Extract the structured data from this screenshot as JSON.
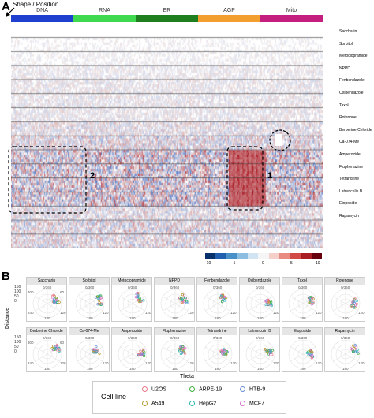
{
  "panel_a": {
    "letter": "A",
    "shape_label": "Shape / Position",
    "groups": [
      {
        "name": "DNA",
        "color": "#1f3fcf"
      },
      {
        "name": "RNA",
        "color": "#3fd94f"
      },
      {
        "name": "ER",
        "color": "#1f7f1f"
      },
      {
        "name": "AGP",
        "color": "#f29f2f"
      },
      {
        "name": "Mito",
        "color": "#c41f7f"
      }
    ],
    "compounds": [
      "Saccharin",
      "Sorbitol",
      "Metoclopramide",
      "NPPD",
      "Fenbendazole",
      "Oxibendazole",
      "Taxol",
      "Rotenone",
      "Berberine Chloride",
      "Ca-074-Me",
      "Amperozide",
      "Fluphenazine",
      "Tetrandrine",
      "Latrunculin B",
      "Etoposide",
      "Rapamycin"
    ],
    "annotation_1": "1",
    "annotation_2": "2",
    "colorbar_ticks": [
      "-10",
      "-5",
      "0",
      "5",
      "10"
    ]
  },
  "panel_b": {
    "letter": "B",
    "y_axis_label": "Distance",
    "x_axis_label": "Theta",
    "angle_ticks": [
      "0/360",
      "60",
      "120",
      "180",
      "240",
      "300"
    ],
    "radial_ticks": [
      "150",
      "100",
      "50",
      "0"
    ],
    "panels": [
      "Saccharin",
      "Sorbitol",
      "Metoclopramide",
      "NPPD",
      "Fenbendazole",
      "Oxibendazole",
      "Taxol",
      "Rotenone",
      "Berberine Chloride",
      "Ca-074-Me",
      "Amperozide",
      "Fluphenazine",
      "Tetrandrine",
      "Latrunculin B",
      "Etoposide",
      "Rapamycin"
    ],
    "legend_title": "Cell line",
    "legend_items": [
      {
        "name": "U2OS",
        "color": "#e8788a"
      },
      {
        "name": "ARPE-19",
        "color": "#3fae3f"
      },
      {
        "name": "HTB-9",
        "color": "#6b8fd8"
      },
      {
        "name": "A549",
        "color": "#b59a2f"
      },
      {
        "name": "HepG2",
        "color": "#2fb5b5"
      },
      {
        "name": "MCF7",
        "color": "#d870d0"
      }
    ]
  }
}
